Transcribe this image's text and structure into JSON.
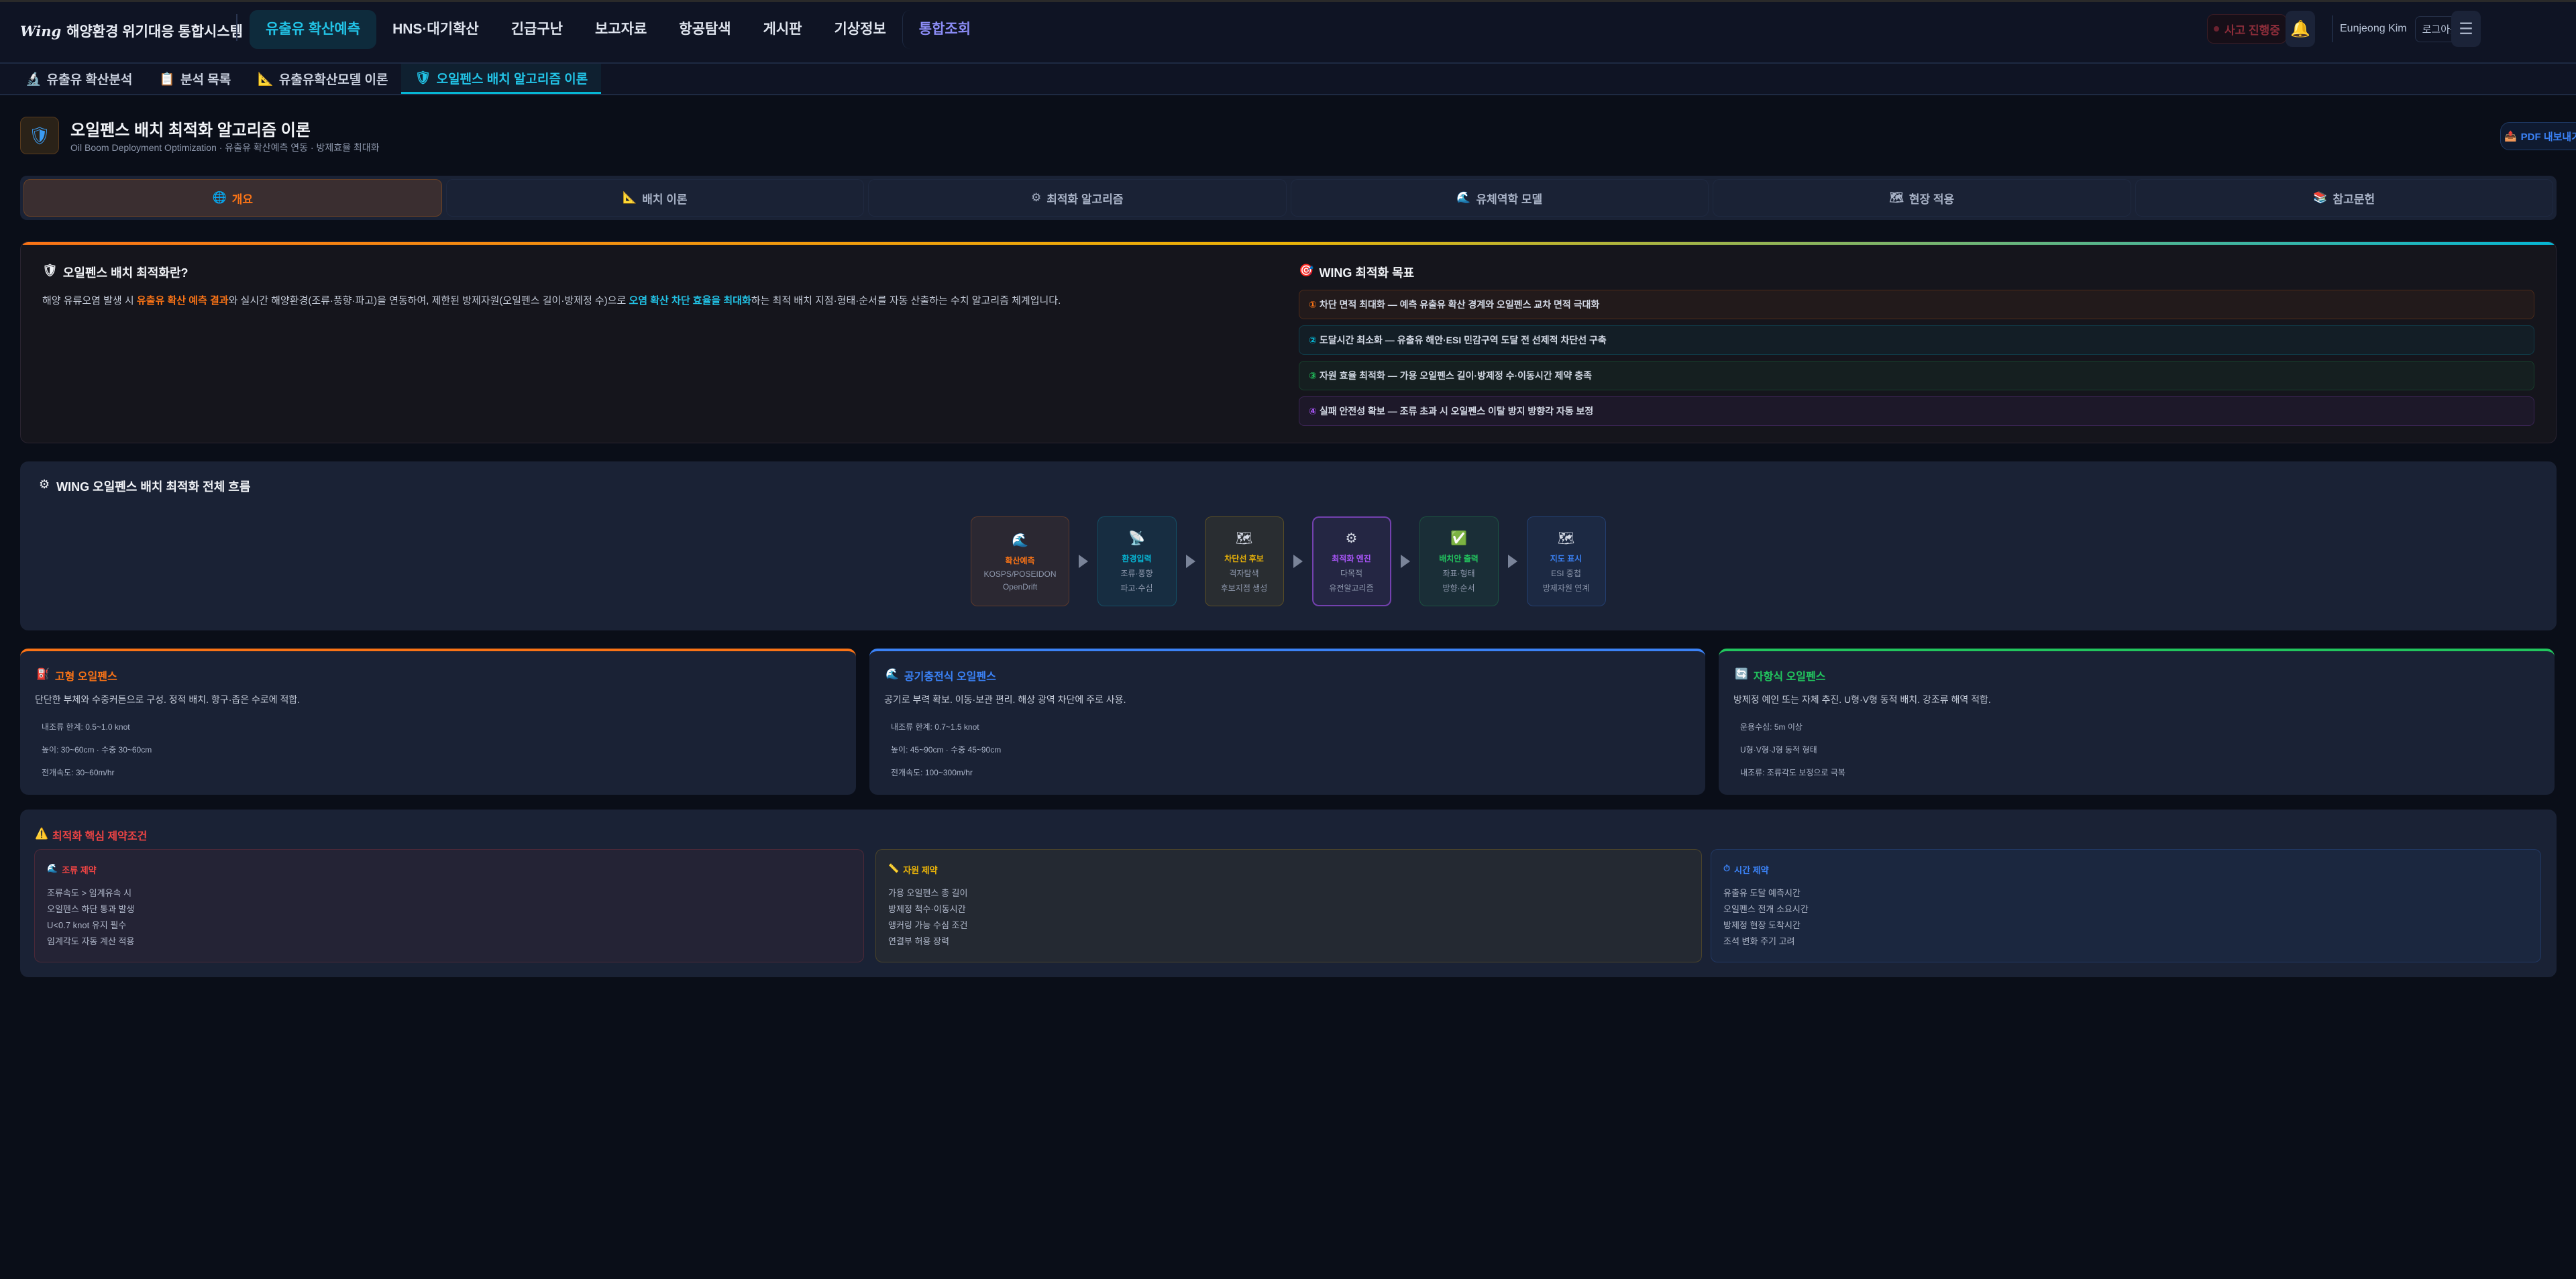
{
  "header": {
    "logo": "Wing",
    "system_name": "해양환경 위기대응 통합시스템",
    "nav": [
      "유출유 확산예측",
      "HNS·대기확산",
      "긴급구난",
      "보고자료",
      "항공탐색",
      "게시판",
      "기상정보",
      "통합조회"
    ],
    "incident_status": "사고 진행중",
    "user_name": "Eunjeong Kim",
    "logout": "로그아웃"
  },
  "subnav": [
    {
      "label": "유출유 확산분석",
      "icon": "microscope-icon"
    },
    {
      "label": "분석 목록",
      "icon": "clipboard-icon"
    },
    {
      "label": "유출유확산모델 이론",
      "icon": "triangle-ruler-icon"
    },
    {
      "label": "오일펜스 배치 알고리즘 이론",
      "icon": "shield-icon"
    }
  ],
  "page": {
    "title": "오일펜스 배치 최적화 알고리즘 이론",
    "subtitle": "Oil Boom Deployment Optimization · 유출유 확산예측 연동 · 방제효율 최대화",
    "pdf_button": "PDF 내보내기"
  },
  "tabs": [
    {
      "label": "개요",
      "icon": "globe-icon"
    },
    {
      "label": "배치 이론",
      "icon": "triangle-ruler-icon"
    },
    {
      "label": "최적화 알고리즘",
      "icon": "gear-icon"
    },
    {
      "label": "유체역학 모델",
      "icon": "wave-icon"
    },
    {
      "label": "현장 적용",
      "icon": "map-icon"
    },
    {
      "label": "참고문헌",
      "icon": "books-icon"
    }
  ],
  "overview": {
    "title": "오일펜스 배치 최적화란?",
    "text_1": "해양 유류오염 발생 시 ",
    "text_hl1": "유출유 확산 예측 결과",
    "text_2": "와 실시간 해양환경(조류·풍향·파고)을 연동하여, 제한된 방제자원(오일펜스 길이·방제정 수)으로 ",
    "text_hl2": "오염 확산 차단 효율을 최대화",
    "text_3": "하는 최적 배치 지점·형태·순서를 자동 산출하는 수치 알고리즘 체계입니다.",
    "goals_title": "WING 최적화 목표",
    "goals": [
      {
        "num": "①",
        "text": "차단 면적 최대화 — 예측 유출유 확산 경계와 오일펜스 교차 면적 극대화",
        "color": "#f97316"
      },
      {
        "num": "②",
        "text": "도달시간 최소화 — 유출유 해안·ESI 민감구역 도달 전 선제적 차단선 구축",
        "color": "#06b6d4"
      },
      {
        "num": "③",
        "text": "자원 효율 최적화 — 가용 오일펜스 길이·방제정 수·이동시간 제약 충족",
        "color": "#22c55e"
      },
      {
        "num": "④",
        "text": "실패 안전성 확보 — 조류 초과 시 오일펜스 이탈 방지 방향각 자동 보정",
        "color": "#a855f7"
      }
    ]
  },
  "flow": {
    "title": "WING 오일펜스 배치 최적화 전체 흐름",
    "steps": [
      {
        "icon": "wave-icon",
        "title": "확산예측",
        "l1": "KOSPS/POSEIDON",
        "l2": "OpenDrift",
        "color": "#f97316"
      },
      {
        "icon": "satellite-icon",
        "title": "환경입력",
        "l1": "조류·풍향",
        "l2": "파고·수심",
        "color": "#06b6d4"
      },
      {
        "icon": "map-icon",
        "title": "차단선 후보",
        "l1": "격자탐색",
        "l2": "후보지점 생성",
        "color": "#eab308"
      },
      {
        "icon": "gear-icon",
        "title": "최적화 엔진",
        "l1": "다목적",
        "l2": "유전알고리즘",
        "color": "#a855f7"
      },
      {
        "icon": "check-icon",
        "title": "배치안 출력",
        "l1": "좌표·형태",
        "l2": "방향·순서",
        "color": "#22c55e"
      },
      {
        "icon": "map-icon",
        "title": "지도 표시",
        "l1": "ESI 중첩",
        "l2": "방제자원 연계",
        "color": "#3b82f6"
      }
    ]
  },
  "booms": [
    {
      "title": "고형 오일펜스",
      "icon": "fuel-pump-icon",
      "color": "#f97316",
      "desc": "단단한 부체와 수중커튼으로 구성. 정적 배치. 항구·좁은 수로에 적합.",
      "specs": [
        "내조류 한계: 0.5~1.0 knot",
        "높이: 30~60cm · 수중 30~60cm",
        "전개속도: 30~60m/hr"
      ]
    },
    {
      "title": "공기충전식 오일펜스",
      "icon": "wave-icon",
      "color": "#3b82f6",
      "desc": "공기로 부력 확보. 이동·보관 편리. 해상 광역 차단에 주로 사용.",
      "specs": [
        "내조류 한계: 0.7~1.5 knot",
        "높이: 45~90cm · 수중 45~90cm",
        "전개속도: 100~300m/hr"
      ]
    },
    {
      "title": "자항식 오일펜스",
      "icon": "refresh-icon",
      "color": "#22c55e",
      "desc": "방제정 예인 또는 자체 추진. U형·V형 동적 배치. 강조류 해역 적합.",
      "specs": [
        "운용수심: 5m 이상",
        "U형·V형·J형 동적 형태",
        "내조류: 조류각도 보정으로 극복"
      ]
    }
  ],
  "constraints": {
    "title": "최적화 핵심 제약조건",
    "cards": [
      {
        "title": "조류 제약",
        "icon": "wave-icon",
        "color": "#ef4444",
        "items": [
          "조류속도 > 임계유속 시",
          "오일펜스 하단 통과 발생",
          "U<0.7 knot 유지 필수",
          "임계각도 자동 계산 적용"
        ]
      },
      {
        "title": "자원 제약",
        "icon": "ruler-icon",
        "color": "#eab308",
        "items": [
          "가용 오일펜스 총 길이",
          "방제정 척수·이동시간",
          "앵커링 가능 수심 조건",
          "연결부 허용 장력"
        ]
      },
      {
        "title": "시간 제약",
        "icon": "stopwatch-icon",
        "color": "#3b82f6",
        "items": [
          "유출유 도달 예측시간",
          "오일펜스 전개 소요시간",
          "방제정 현장 도착시간",
          "조석 변화 주기 고려"
        ]
      }
    ]
  }
}
